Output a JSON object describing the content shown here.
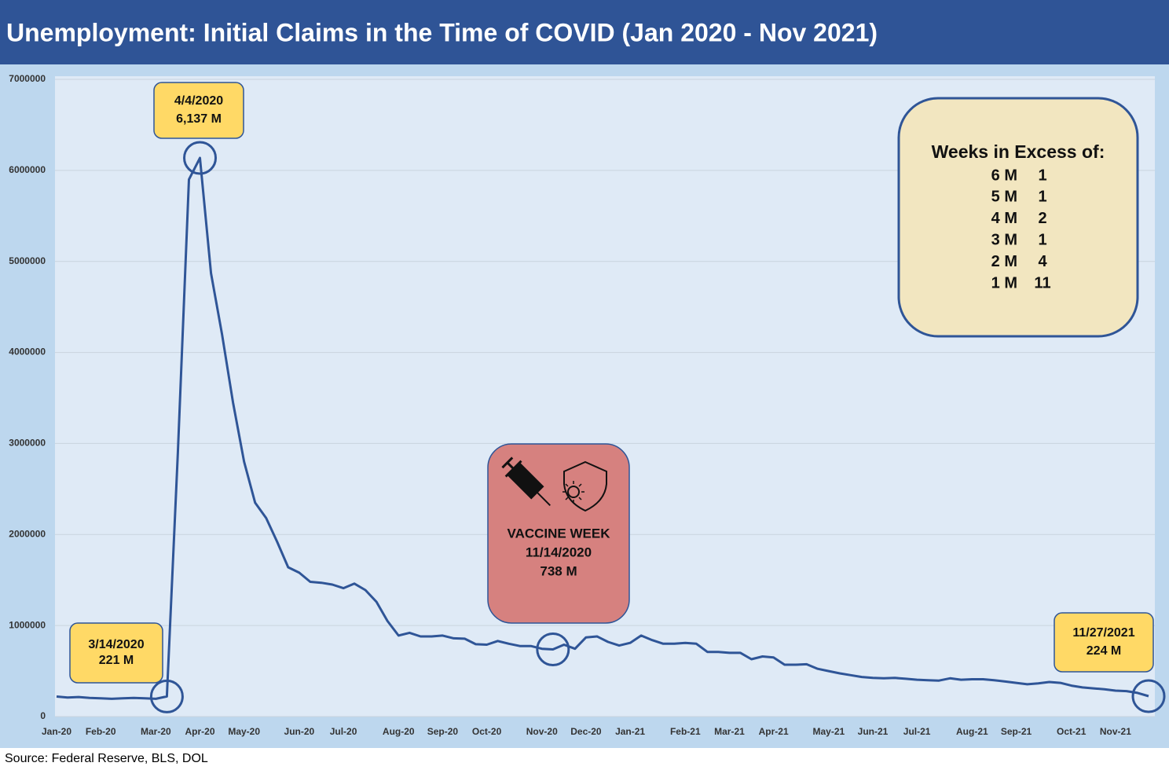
{
  "chart_data": {
    "type": "line",
    "title": "Unemployment: Initial Claims in the Time of COVID (Jan 2020 - Nov 2021)",
    "source": "Source: Federal Reserve, BLS, DOL",
    "color": "#2f5597",
    "grid": true,
    "ylim": [
      0,
      7000000
    ],
    "yticks": [
      0,
      1000000,
      2000000,
      3000000,
      4000000,
      5000000,
      6000000,
      7000000
    ],
    "categories": [
      "Jan-20",
      null,
      null,
      null,
      "Feb-20",
      null,
      null,
      null,
      null,
      "Mar-20",
      null,
      null,
      null,
      "Apr-20",
      null,
      null,
      null,
      "May-20",
      null,
      null,
      null,
      null,
      "Jun-20",
      null,
      null,
      null,
      "Jul-20",
      null,
      null,
      null,
      null,
      "Aug-20",
      null,
      null,
      null,
      "Sep-20",
      null,
      null,
      null,
      "Oct-20",
      null,
      null,
      null,
      null,
      "Nov-20",
      null,
      null,
      null,
      "Dec-20",
      null,
      null,
      null,
      "Jan-21",
      null,
      null,
      null,
      null,
      "Feb-21",
      null,
      null,
      null,
      "Mar-21",
      null,
      null,
      null,
      "Apr-21",
      null,
      null,
      null,
      null,
      "May-21",
      null,
      null,
      null,
      "Jun-21",
      null,
      null,
      null,
      "Jul-21",
      null,
      null,
      null,
      null,
      "Aug-21",
      null,
      null,
      null,
      "Sep-21",
      null,
      null,
      null,
      null,
      "Oct-21",
      null,
      null,
      null,
      "Nov-21",
      null,
      null,
      null
    ],
    "values": [
      220000,
      210000,
      215000,
      205000,
      200000,
      195000,
      200000,
      205000,
      200000,
      195000,
      221000,
      2900000,
      5900000,
      6137000,
      4870000,
      4200000,
      3450000,
      2800000,
      2350000,
      2180000,
      1920000,
      1640000,
      1580000,
      1480000,
      1470000,
      1450000,
      1410000,
      1460000,
      1390000,
      1260000,
      1050000,
      890000,
      920000,
      880000,
      880000,
      890000,
      860000,
      855000,
      795000,
      790000,
      830000,
      800000,
      775000,
      775000,
      745000,
      738000,
      790000,
      745000,
      870000,
      880000,
      820000,
      780000,
      810000,
      890000,
      840000,
      800000,
      800000,
      810000,
      800000,
      710000,
      710000,
      700000,
      700000,
      630000,
      660000,
      650000,
      570000,
      570000,
      575000,
      525000,
      500000,
      475000,
      455000,
      435000,
      425000,
      420000,
      425000,
      415000,
      405000,
      400000,
      395000,
      420000,
      405000,
      410000,
      410000,
      400000,
      385000,
      370000,
      355000,
      365000,
      380000,
      370000,
      340000,
      320000,
      310000,
      300000,
      285000,
      280000,
      260000,
      224000
    ],
    "annotations": [
      {
        "lines": [
          "4/4/2020",
          "6,137 M"
        ]
      },
      {
        "lines": [
          "3/14/2020",
          "221 M"
        ]
      },
      {
        "lines": [
          "VACCINE WEEK",
          "11/14/2020",
          "738 M"
        ]
      },
      {
        "lines": [
          "11/27/2021",
          "224 M"
        ]
      }
    ],
    "excess_table": {
      "title": "Weeks in Excess of:",
      "rows": [
        {
          "label": "6 M",
          "weeks": 1
        },
        {
          "label": "5 M",
          "weeks": 1
        },
        {
          "label": "4 M",
          "weeks": 2
        },
        {
          "label": "3 M",
          "weeks": 1
        },
        {
          "label": "2 M",
          "weeks": 4
        },
        {
          "label": "1 M",
          "weeks": 11
        }
      ]
    }
  }
}
